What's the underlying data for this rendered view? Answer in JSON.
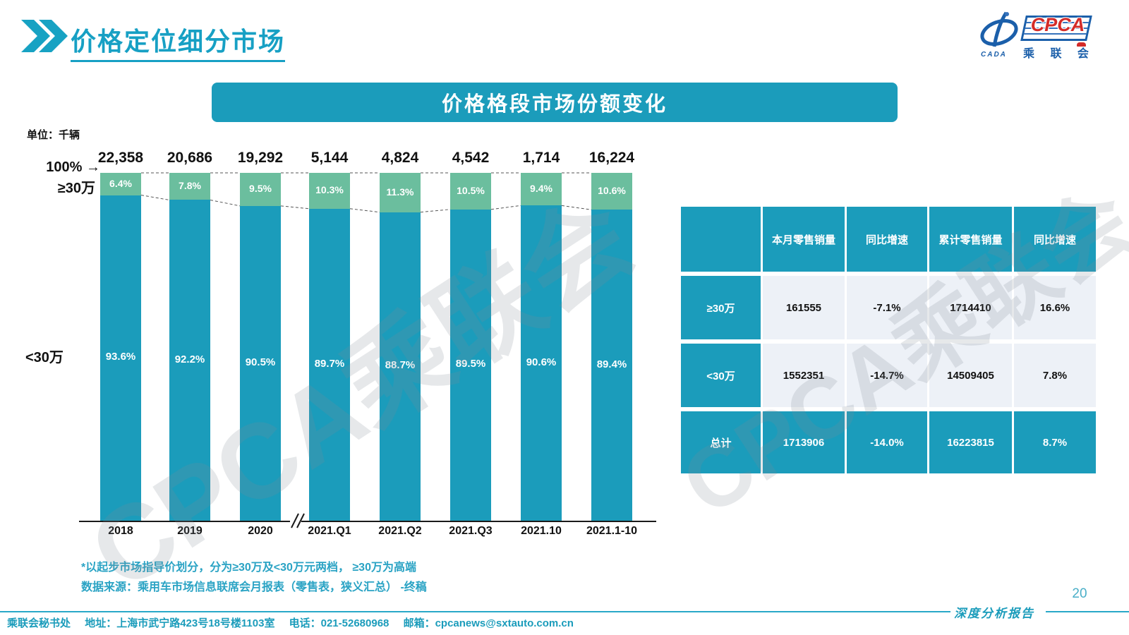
{
  "header": {
    "title": "价格定位细分市场",
    "logo": {
      "cpca": "CPCA",
      "cada": "CADA",
      "org": "乘 联 会"
    }
  },
  "banner": {
    "title": "价格格段市场份额变化"
  },
  "chart_data": {
    "type": "bar",
    "stacked": true,
    "unit_label": "单位：千辆",
    "categories": [
      "2018",
      "2019",
      "2020",
      "2021.Q1",
      "2021.Q2",
      "2021.Q3",
      "2021.10",
      "2021.1-10"
    ],
    "totals": [
      22358,
      20686,
      19292,
      5144,
      4824,
      4542,
      1714,
      16224
    ],
    "totals_display": [
      "22,358",
      "20,686",
      "19,292",
      "5,144",
      "4,824",
      "4,542",
      "1,714",
      "16,224"
    ],
    "series": [
      {
        "name": "≥30万",
        "color": "#6BBE9E",
        "values": [
          6.4,
          7.8,
          9.5,
          10.3,
          11.3,
          10.5,
          9.4,
          10.6
        ]
      },
      {
        "name": "<30万",
        "color": "#1B9CBB",
        "values": [
          93.6,
          92.2,
          90.5,
          89.7,
          88.7,
          89.5,
          90.6,
          89.4
        ]
      }
    ],
    "axis": {
      "top_label": "100%",
      "arrow": "→",
      "upper_segment_label": "≥30万",
      "lower_segment_label": "<30万",
      "has_axis_break": true
    },
    "ylim": [
      0,
      100
    ],
    "value_suffix": "%"
  },
  "table": {
    "headers": [
      "",
      "本月零售销量",
      "同比增速",
      "累计零售销量",
      "同比增速"
    ],
    "rows": [
      {
        "label": "≥30万",
        "cells": [
          "161555",
          "-7.1%",
          "1714410",
          "16.6%"
        ],
        "highlight": false
      },
      {
        "label": "<30万",
        "cells": [
          "1552351",
          "-14.7%",
          "14509405",
          "7.8%"
        ],
        "highlight": false
      },
      {
        "label": "总计",
        "cells": [
          "1713906",
          "-14.0%",
          "16223815",
          "8.7%"
        ],
        "highlight": true
      }
    ]
  },
  "footnotes": {
    "line1": "*以起步市场指导价划分，分为≥30万及<30万元两档， ≥30万为高端",
    "line2": "数据来源：乘用车市场信息联席会月报表（零售表，狭义汇总） -终稿"
  },
  "footer": {
    "secretariat": "乘联会秘书处",
    "address": "地址：上海市武宁路423号18号楼1103室",
    "phone": "电话：021-52680968",
    "email": "邮箱：cpcanews@sxtauto.com.cn",
    "report_label": "深度分析报告",
    "page_number": "20"
  },
  "watermark": {
    "text": "CPCA乘联会"
  },
  "colors": {
    "teal": "#1B9CBB",
    "green": "#6BBE9E",
    "title_accent": "#17A0C4",
    "table_row_bg": "#EDF1F7",
    "logo_blue": "#1B5FAA",
    "logo_red": "#D42B28"
  }
}
